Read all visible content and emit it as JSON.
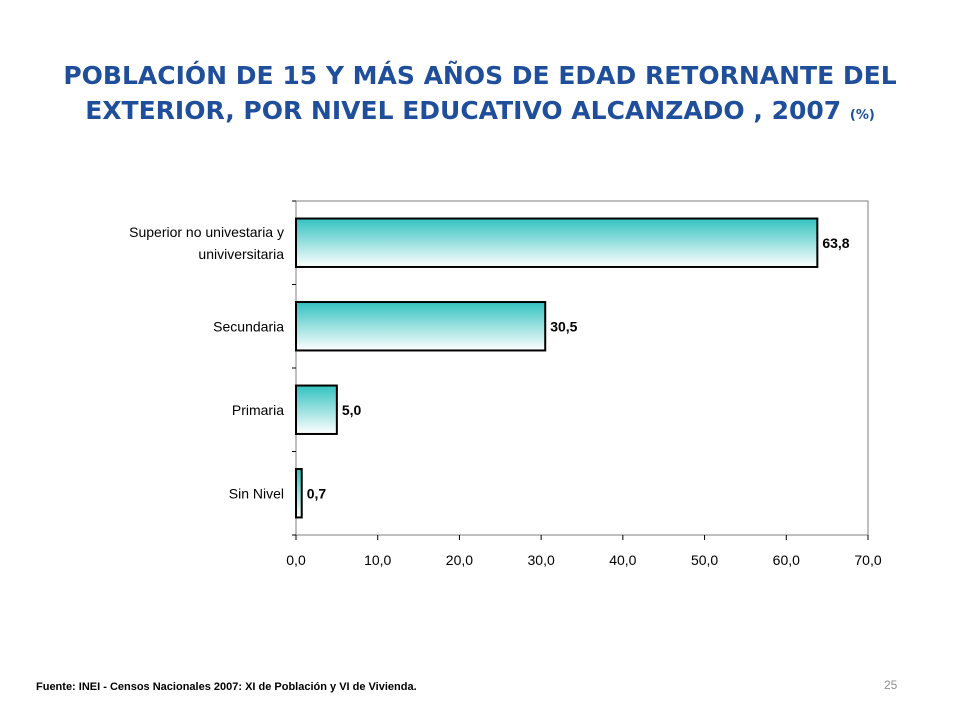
{
  "title": {
    "main": "POBLACIÓN DE 15 Y MÁS AÑOS DE EDAD RETORNANTE DEL EXTERIOR, POR NIVEL EDUCATIVO ALCANZADO , 2007",
    "unit": "(%)"
  },
  "chart_data": {
    "type": "bar",
    "orientation": "horizontal",
    "categories": [
      [
        "Superior no univestaria y",
        "univiversitaria"
      ],
      [
        "Secundaria"
      ],
      [
        "Primaria"
      ],
      [
        "Sin Nivel"
      ]
    ],
    "values": [
      63.8,
      30.5,
      5.0,
      0.7
    ],
    "data_labels": [
      "63,8",
      "30,5",
      "5,0",
      "0,7"
    ],
    "xlim": [
      0,
      70
    ],
    "x_ticks": [
      "0,0",
      "10,0",
      "20,0",
      "30,0",
      "40,0",
      "50,0",
      "60,0",
      "70,0"
    ],
    "grid": false,
    "legend": "none",
    "colors": {
      "bar_gradient_top": "#33c2bf",
      "bar_gradient_bottom": "#ffffff",
      "bar_border": "#000000",
      "plot_border": "#7f7f7f"
    }
  },
  "footer": {
    "source": "Fuente: INEI - Censos Nacionales 2007: XI de Población y VI de Vivienda.",
    "page_number": "25"
  }
}
